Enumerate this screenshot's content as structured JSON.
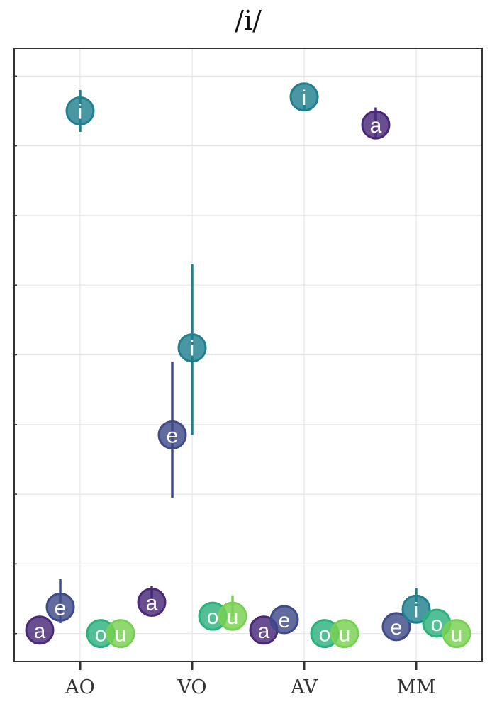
{
  "chart_data": {
    "type": "scatter",
    "title": "/i/",
    "xlabel": "",
    "ylabel": "",
    "categories": [
      "AO",
      "VO",
      "AV",
      "MM"
    ],
    "y_ticks_labeled": false,
    "ylim": [
      -0.4,
      8.4
    ],
    "grid": true,
    "colors": {
      "a": "#482878",
      "e": "#3e4a89",
      "i": "#21808d",
      "o": "#2cb17e",
      "u": "#78d152"
    },
    "series": [
      {
        "name": "a",
        "points": [
          {
            "category": "AO",
            "y": 0.05,
            "lo": 0.05,
            "hi": 0.05
          },
          {
            "category": "VO",
            "y": 0.45,
            "lo": 0.45,
            "hi": 0.68
          },
          {
            "category": "AV",
            "y": 0.05,
            "lo": 0.05,
            "hi": 0.05
          },
          {
            "category": "MM",
            "y": 7.3,
            "lo": 7.1,
            "hi": 7.55
          }
        ]
      },
      {
        "name": "e",
        "points": [
          {
            "category": "AO",
            "y": 0.38,
            "lo": 0.15,
            "hi": 0.78
          },
          {
            "category": "VO",
            "y": 2.85,
            "lo": 1.95,
            "hi": 3.9
          },
          {
            "category": "AV",
            "y": 0.2,
            "lo": 0.2,
            "hi": 0.2
          },
          {
            "category": "MM",
            "y": 0.1,
            "lo": 0.1,
            "hi": 0.1
          }
        ]
      },
      {
        "name": "i",
        "points": [
          {
            "category": "AO",
            "y": 7.5,
            "lo": 7.2,
            "hi": 7.8
          },
          {
            "category": "VO",
            "y": 4.1,
            "lo": 2.85,
            "hi": 5.3
          },
          {
            "category": "AV",
            "y": 7.7,
            "lo": 7.5,
            "hi": 7.75
          },
          {
            "category": "MM",
            "y": 0.35,
            "lo": 0.35,
            "hi": 0.65
          }
        ]
      },
      {
        "name": "o",
        "points": [
          {
            "category": "AO",
            "y": 0.0,
            "lo": 0.0,
            "hi": 0.0
          },
          {
            "category": "VO",
            "y": 0.25,
            "lo": 0.25,
            "hi": 0.25
          },
          {
            "category": "AV",
            "y": 0.0,
            "lo": 0.0,
            "hi": 0.0
          },
          {
            "category": "MM",
            "y": 0.15,
            "lo": 0.15,
            "hi": 0.15
          }
        ]
      },
      {
        "name": "u",
        "points": [
          {
            "category": "AO",
            "y": 0.0,
            "lo": 0.0,
            "hi": 0.0
          },
          {
            "category": "VO",
            "y": 0.25,
            "lo": 0.25,
            "hi": 0.55
          },
          {
            "category": "AV",
            "y": 0.0,
            "lo": 0.0,
            "hi": 0.0
          },
          {
            "category": "MM",
            "y": 0.0,
            "lo": 0.0,
            "hi": 0.0
          }
        ]
      }
    ]
  }
}
